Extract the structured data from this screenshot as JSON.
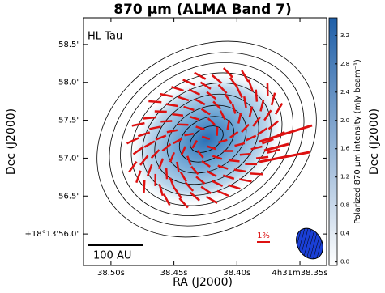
{
  "chart_data": {
    "type": "image",
    "title": "870 μm (ALMA Band 7)",
    "x_label": "RA (J2000)",
    "y_label": "Dec (J2000)",
    "y2_label": "Dec (J2000)",
    "colorbar_label": "Polarized 870 μm intensity (mJy beam⁻¹)",
    "annotations": [
      "HL Tau",
      "100 AU",
      "1%"
    ],
    "xlim": [
      38.5218,
      38.3288
    ],
    "xticks": [
      {
        "value": 38.5,
        "label": "38.50s"
      },
      {
        "value": 38.45,
        "label": "38.45s"
      },
      {
        "value": 38.4,
        "label": "38.40s"
      },
      {
        "value": 38.35,
        "label": "4h31m38.35s"
      }
    ],
    "ylim": [
      55.585,
      58.851
    ],
    "yticks": [
      {
        "value": 56.0,
        "label": "+18°13'56.0\""
      },
      {
        "value": 56.5,
        "label": "56.5\""
      },
      {
        "value": 57.0,
        "label": "57.0\""
      },
      {
        "value": 57.5,
        "label": "57.5\""
      },
      {
        "value": 58.0,
        "label": "58.0\""
      },
      {
        "value": 58.5,
        "label": "58.5\""
      }
    ],
    "clim": [
      -0.05,
      3.45
    ],
    "cticks": [
      {
        "value": 0.0,
        "label": "0.0"
      },
      {
        "value": 0.4,
        "label": "0.4"
      },
      {
        "value": 0.8,
        "label": "0.8"
      },
      {
        "value": 1.2,
        "label": "1.2"
      },
      {
        "value": 1.6,
        "label": "1.6"
      },
      {
        "value": 2.0,
        "label": "2.0"
      },
      {
        "value": 2.4,
        "label": "2.4"
      },
      {
        "value": 2.8,
        "label": "2.8"
      },
      {
        "value": 3.2,
        "label": "3.2"
      }
    ],
    "colormap": [
      "#ffffff",
      "#1f5fa8"
    ],
    "vector_color": "#dd1111"
  }
}
